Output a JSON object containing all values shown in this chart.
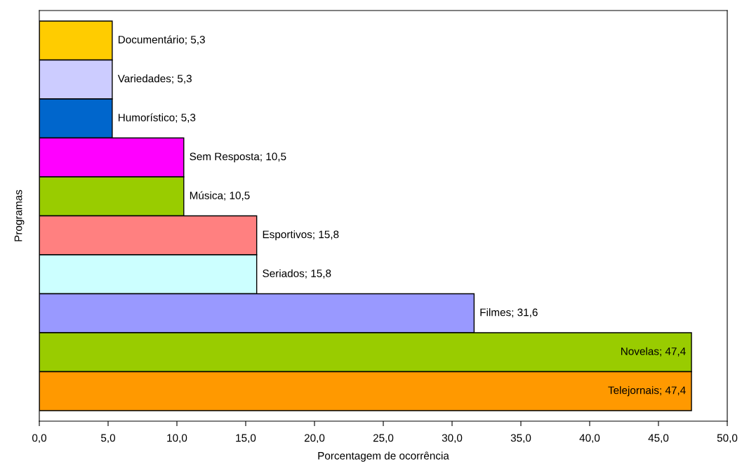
{
  "chart_data": {
    "type": "bar",
    "orientation": "horizontal",
    "xlabel": "Porcentagem de ocorrência",
    "ylabel": "Programas",
    "categories": [
      null,
      null,
      null,
      null,
      null,
      null,
      null,
      null,
      null,
      null
    ],
    "values": [
      5.3,
      5.3,
      5.3,
      10.5,
      10.5,
      15.8,
      15.8,
      31.6,
      47.4,
      47.4
    ],
    "colors": [
      "#ffcc00",
      "#ccccff",
      "#0066cc",
      "#ff00ff",
      "#99cc00",
      "#ff8080",
      "#ccffff",
      "#9999ff",
      "#99cc00",
      "#ff9900"
    ],
    "value_labels": [
      "Documentário; 5,3",
      "Variedades; 5,3",
      "Humorístico; 5,3",
      "Sem Resposta; 10,5",
      "Música; 10,5",
      "Esportivos; 15,8",
      "Seriados; 15,8",
      "Filmes; 31,6",
      "Novelas; 47,4",
      "Telejornais; 47,4"
    ],
    "xlim": [
      0,
      50
    ],
    "xticks": [
      {
        "value": 0,
        "label": "0,0"
      },
      {
        "value": 5,
        "label": "5,0"
      },
      {
        "value": 10,
        "label": "10,0"
      },
      {
        "value": 15,
        "label": "15,0"
      },
      {
        "value": 20,
        "label": "20,0"
      },
      {
        "value": 25,
        "label": "25,0"
      },
      {
        "value": 30,
        "label": "30,0"
      },
      {
        "value": 35,
        "label": "35,0"
      },
      {
        "value": 40,
        "label": "40,0"
      },
      {
        "value": 45,
        "label": "45,0"
      },
      {
        "value": 50,
        "label": "50,0"
      }
    ],
    "tick_labels": "x",
    "grid": false
  }
}
